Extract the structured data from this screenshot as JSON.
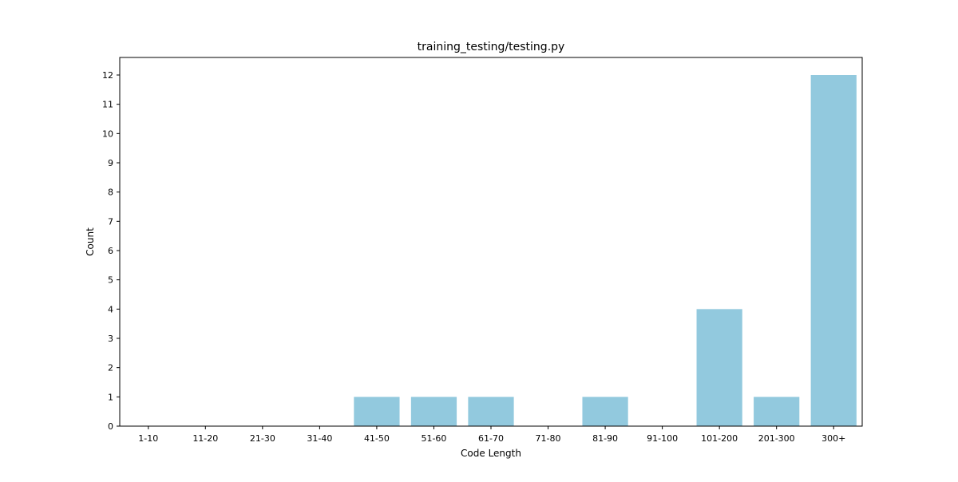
{
  "chart_data": {
    "type": "bar",
    "title": "training_testing/testing.py",
    "xlabel": "Code Length",
    "ylabel": "Count",
    "categories": [
      "1-10",
      "11-20",
      "21-30",
      "31-40",
      "41-50",
      "51-60",
      "61-70",
      "71-80",
      "81-90",
      "91-100",
      "101-200",
      "201-300",
      "300+"
    ],
    "values": [
      0,
      0,
      0,
      0,
      1,
      1,
      1,
      0,
      1,
      0,
      4,
      1,
      12
    ],
    "yticks": [
      0,
      1,
      2,
      3,
      4,
      5,
      6,
      7,
      8,
      9,
      10,
      11,
      12
    ],
    "ylim": [
      0,
      12.6
    ],
    "bar_color": "#92c9de",
    "grid": false,
    "legend": "none"
  }
}
